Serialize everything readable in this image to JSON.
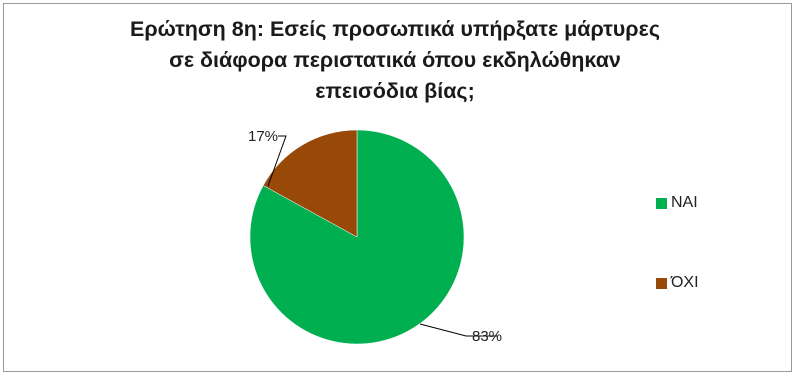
{
  "chart_data": {
    "type": "pie",
    "title_lines": [
      "Ερώτηση 8η: Εσείς προσωπικά υπήρξατε μάρτυρες",
      "σε διάφορα περιστατικά όπου εκδηλώθηκαν",
      "επεισόδια βίας;"
    ],
    "slices": [
      {
        "label": "ΝΑΙ",
        "value": 83,
        "data_label": "83%",
        "color": "#00b050"
      },
      {
        "label": "ΌΧΙ",
        "value": 17,
        "data_label": "17%",
        "color": "#984807"
      }
    ],
    "legend_position": "right",
    "start_angle_deg": 0
  }
}
